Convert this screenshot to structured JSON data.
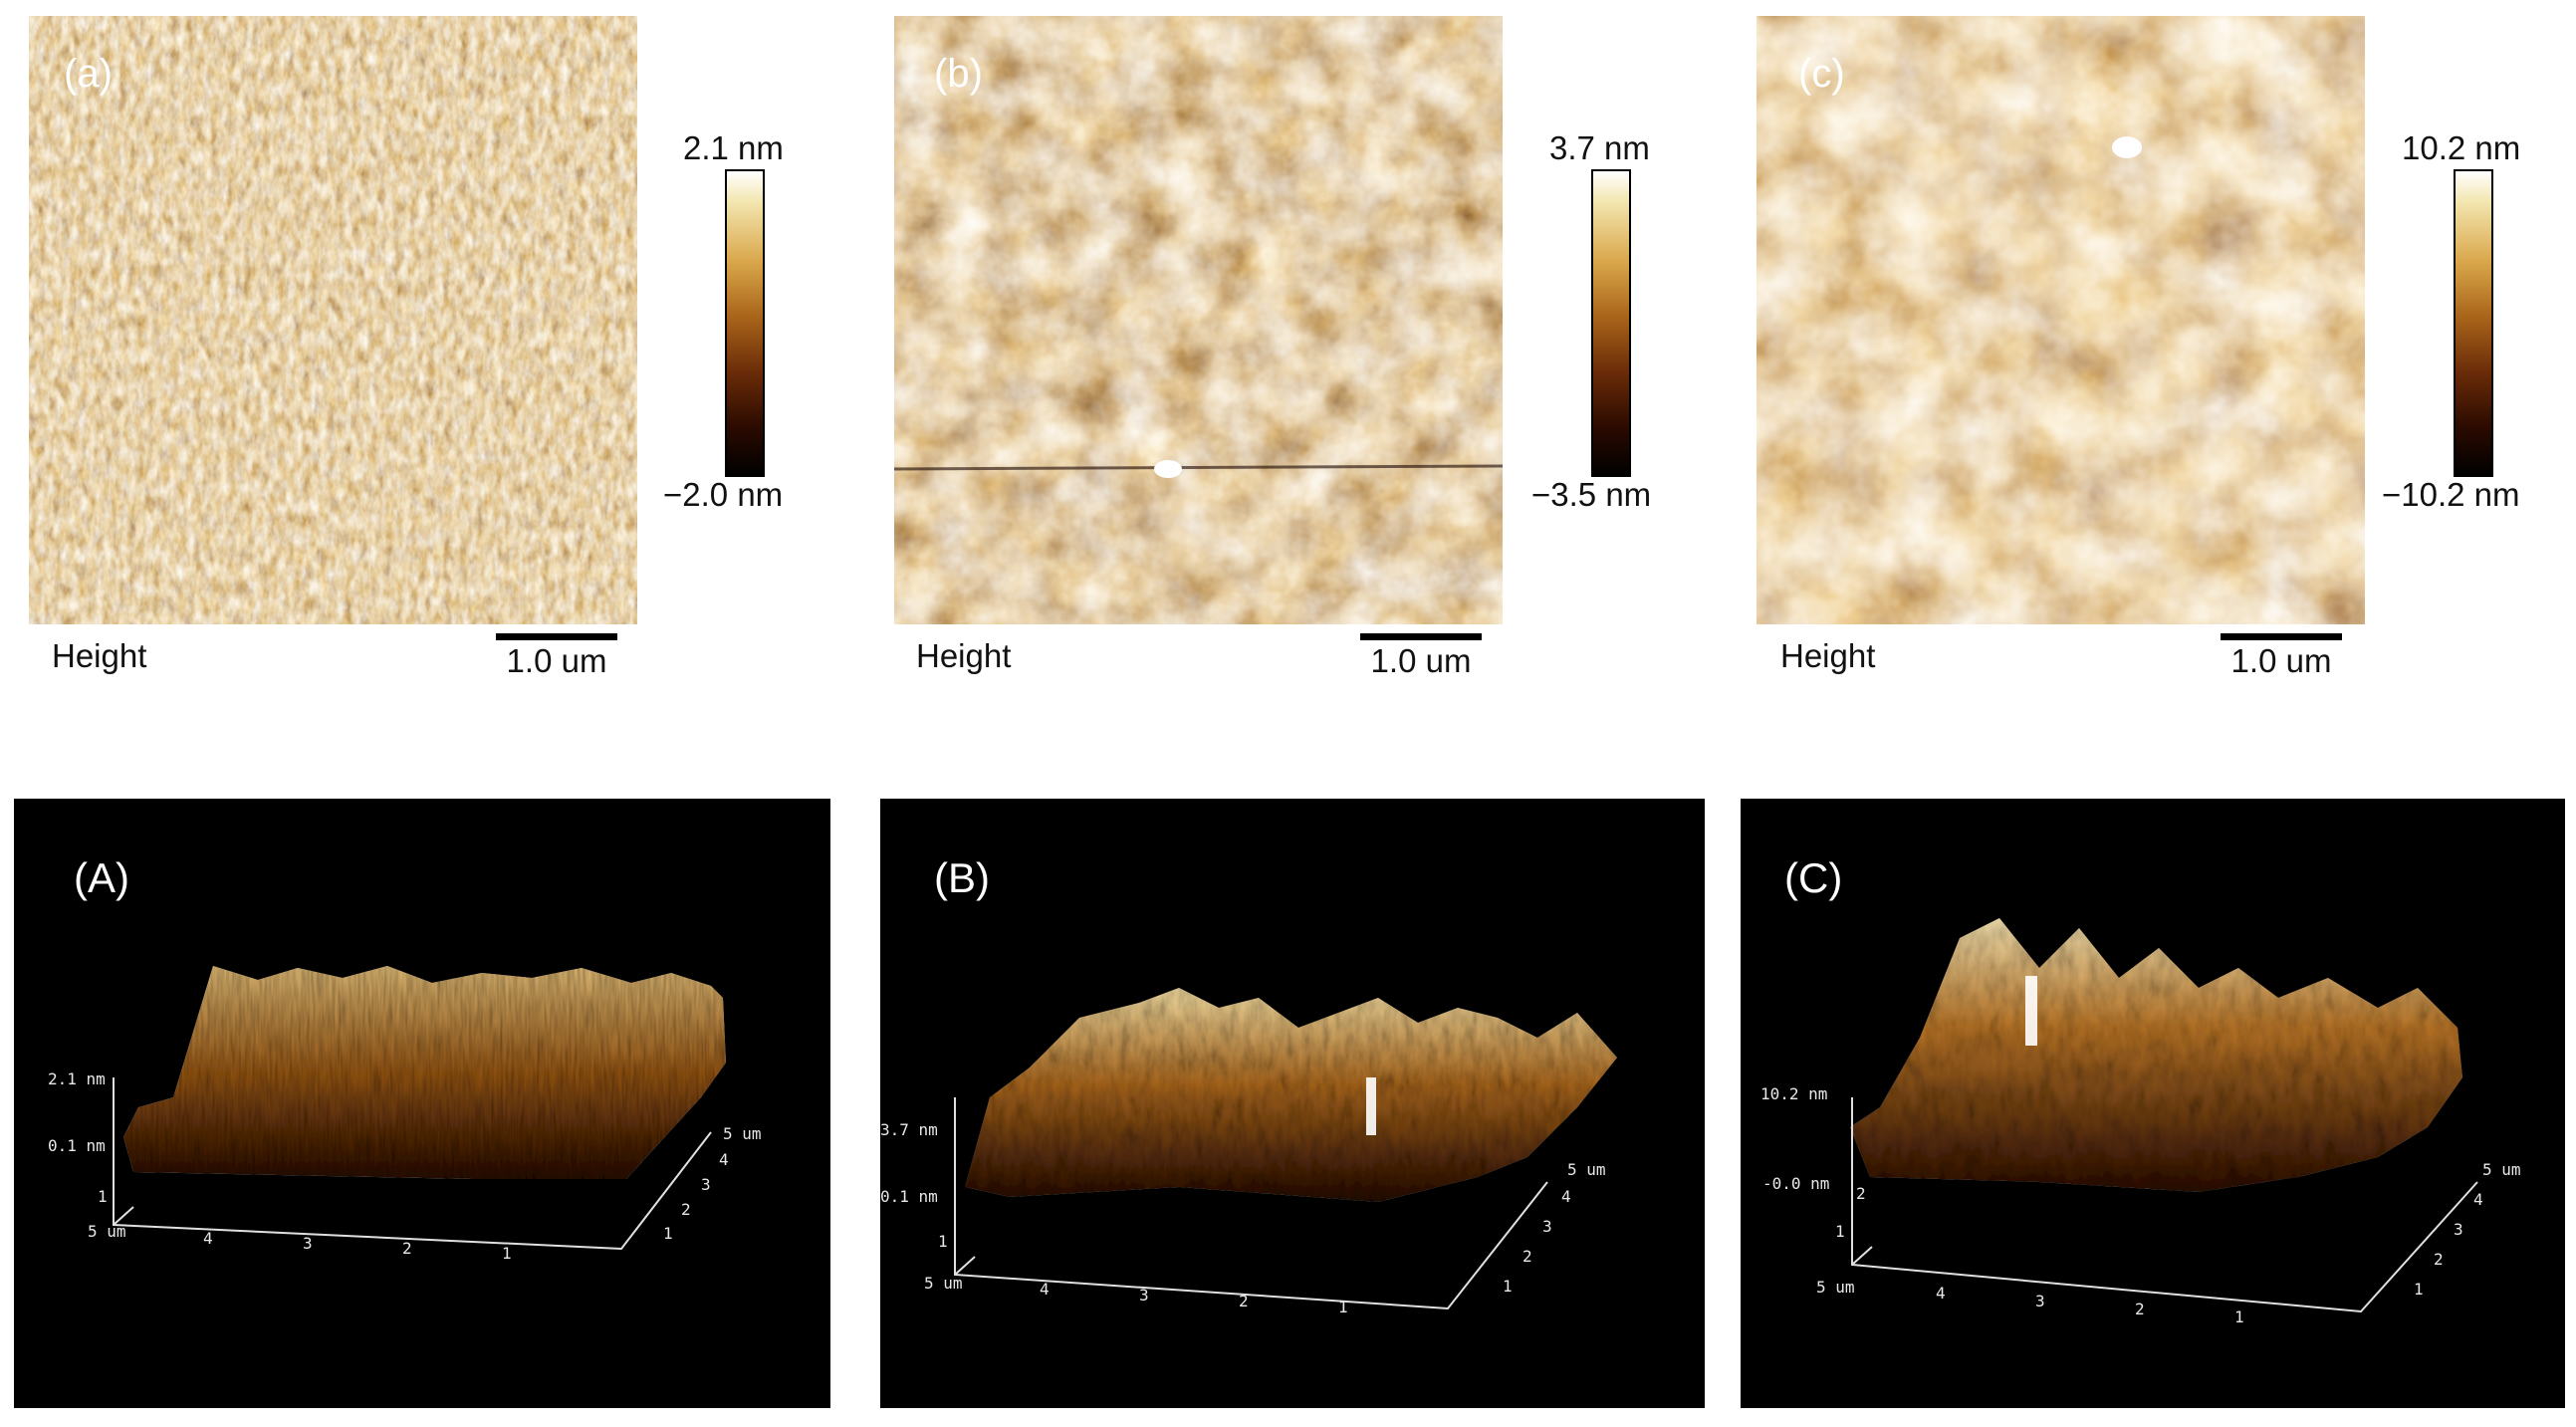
{
  "top_panels": [
    {
      "label": "(a)",
      "max": "2.1 nm",
      "min": "−2.0 nm",
      "channel": "Height",
      "scale": "1.0 um"
    },
    {
      "label": "(b)",
      "max": "3.7 nm",
      "min": "−3.5 nm",
      "channel": "Height",
      "scale": "1.0 um"
    },
    {
      "label": "(c)",
      "max": "10.2 nm",
      "min": "−10.2 nm",
      "channel": "Height",
      "scale": "1.0 um"
    }
  ],
  "bottom_panels": [
    {
      "label": "(A)",
      "z_top": "2.1 nm",
      "z_mid": "0.1 nm",
      "z_low": "1",
      "corner": "5 um",
      "x_ticks": [
        "4",
        "3",
        "2",
        "1"
      ],
      "y_ticks": [
        "1",
        "2",
        "3",
        "4"
      ],
      "y_end": "5 um"
    },
    {
      "label": "(B)",
      "z_top": "3.7 nm",
      "z_mid": "0.1 nm",
      "z_low": "1",
      "corner": "5 um",
      "x_ticks": [
        "4",
        "3",
        "2",
        "1"
      ],
      "y_ticks": [
        "1",
        "2",
        "3",
        "4"
      ],
      "y_end": "5 um"
    },
    {
      "label": "(C)",
      "z_top": "10.2 nm",
      "z_mid": "-0.0 nm",
      "z_low": "1",
      "z_low2": "2",
      "corner": "5 um",
      "x_ticks": [
        "4",
        "3",
        "2",
        "1"
      ],
      "y_ticks": [
        "1",
        "2",
        "3",
        "4"
      ],
      "y_end": "5 um"
    }
  ],
  "colors": {
    "afm_dark": "#2a0c00",
    "afm_mid": "#9c5a15",
    "afm_light": "#f6e2a6",
    "background_3d": "#000000"
  }
}
